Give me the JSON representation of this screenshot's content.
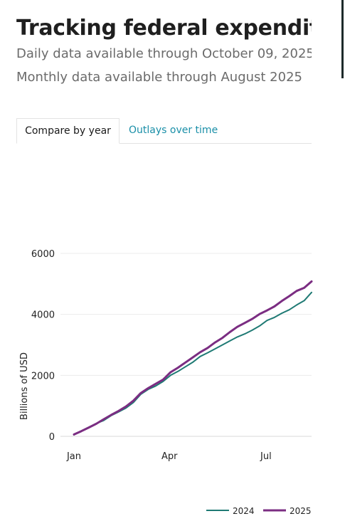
{
  "header": {
    "title": "Tracking federal expenditure",
    "subtitle_daily": "Daily data available through October 09, 2025",
    "subtitle_monthly": "Monthly data available through August 2025"
  },
  "tabs": [
    {
      "label": "Compare by year",
      "active": true
    },
    {
      "label": "Outlays over time",
      "active": false
    }
  ],
  "colors": {
    "series_2024": "#1f7a74",
    "series_2025": "#7b2d82",
    "accent_link": "#1a8fa8"
  },
  "chart_data": {
    "type": "line",
    "ylabel": "Billions of USD",
    "xlabel": "",
    "ylim": [
      0,
      6000
    ],
    "yticks": [
      0,
      2000,
      4000,
      6000
    ],
    "xlim": [
      1,
      225
    ],
    "xticks": [
      {
        "value": 1,
        "label": "Jan"
      },
      {
        "value": 91,
        "label": "Apr"
      },
      {
        "value": 182,
        "label": "Jul"
      }
    ],
    "legend_position": "bottom-right",
    "grid": true,
    "series": [
      {
        "name": "2024",
        "color": "#1f7a74",
        "x": [
          1,
          8,
          15,
          22,
          29,
          36,
          43,
          50,
          57,
          64,
          71,
          78,
          85,
          92,
          99,
          106,
          113,
          120,
          127,
          134,
          141,
          148,
          155,
          162,
          169,
          176,
          183,
          190,
          197,
          204,
          211,
          218,
          225
        ],
        "y": [
          50,
          180,
          300,
          420,
          520,
          680,
          800,
          930,
          1110,
          1380,
          1540,
          1650,
          1800,
          2000,
          2130,
          2280,
          2430,
          2620,
          2740,
          2870,
          3000,
          3130,
          3260,
          3360,
          3480,
          3620,
          3800,
          3900,
          4040,
          4150,
          4310,
          4450,
          4720
        ]
      },
      {
        "name": "2025",
        "color": "#7b2d82",
        "x": [
          1,
          8,
          15,
          22,
          29,
          36,
          43,
          50,
          57,
          64,
          71,
          78,
          85,
          92,
          99,
          106,
          113,
          120,
          127,
          134,
          141,
          148,
          155,
          162,
          169,
          176,
          183,
          190,
          197,
          204,
          211,
          218,
          225
        ],
        "y": [
          60,
          170,
          290,
          410,
          560,
          700,
          830,
          980,
          1170,
          1420,
          1580,
          1720,
          1860,
          2100,
          2250,
          2420,
          2590,
          2760,
          2900,
          3080,
          3230,
          3420,
          3590,
          3720,
          3850,
          4010,
          4130,
          4260,
          4440,
          4600,
          4770,
          4870,
          5080
        ]
      }
    ]
  }
}
